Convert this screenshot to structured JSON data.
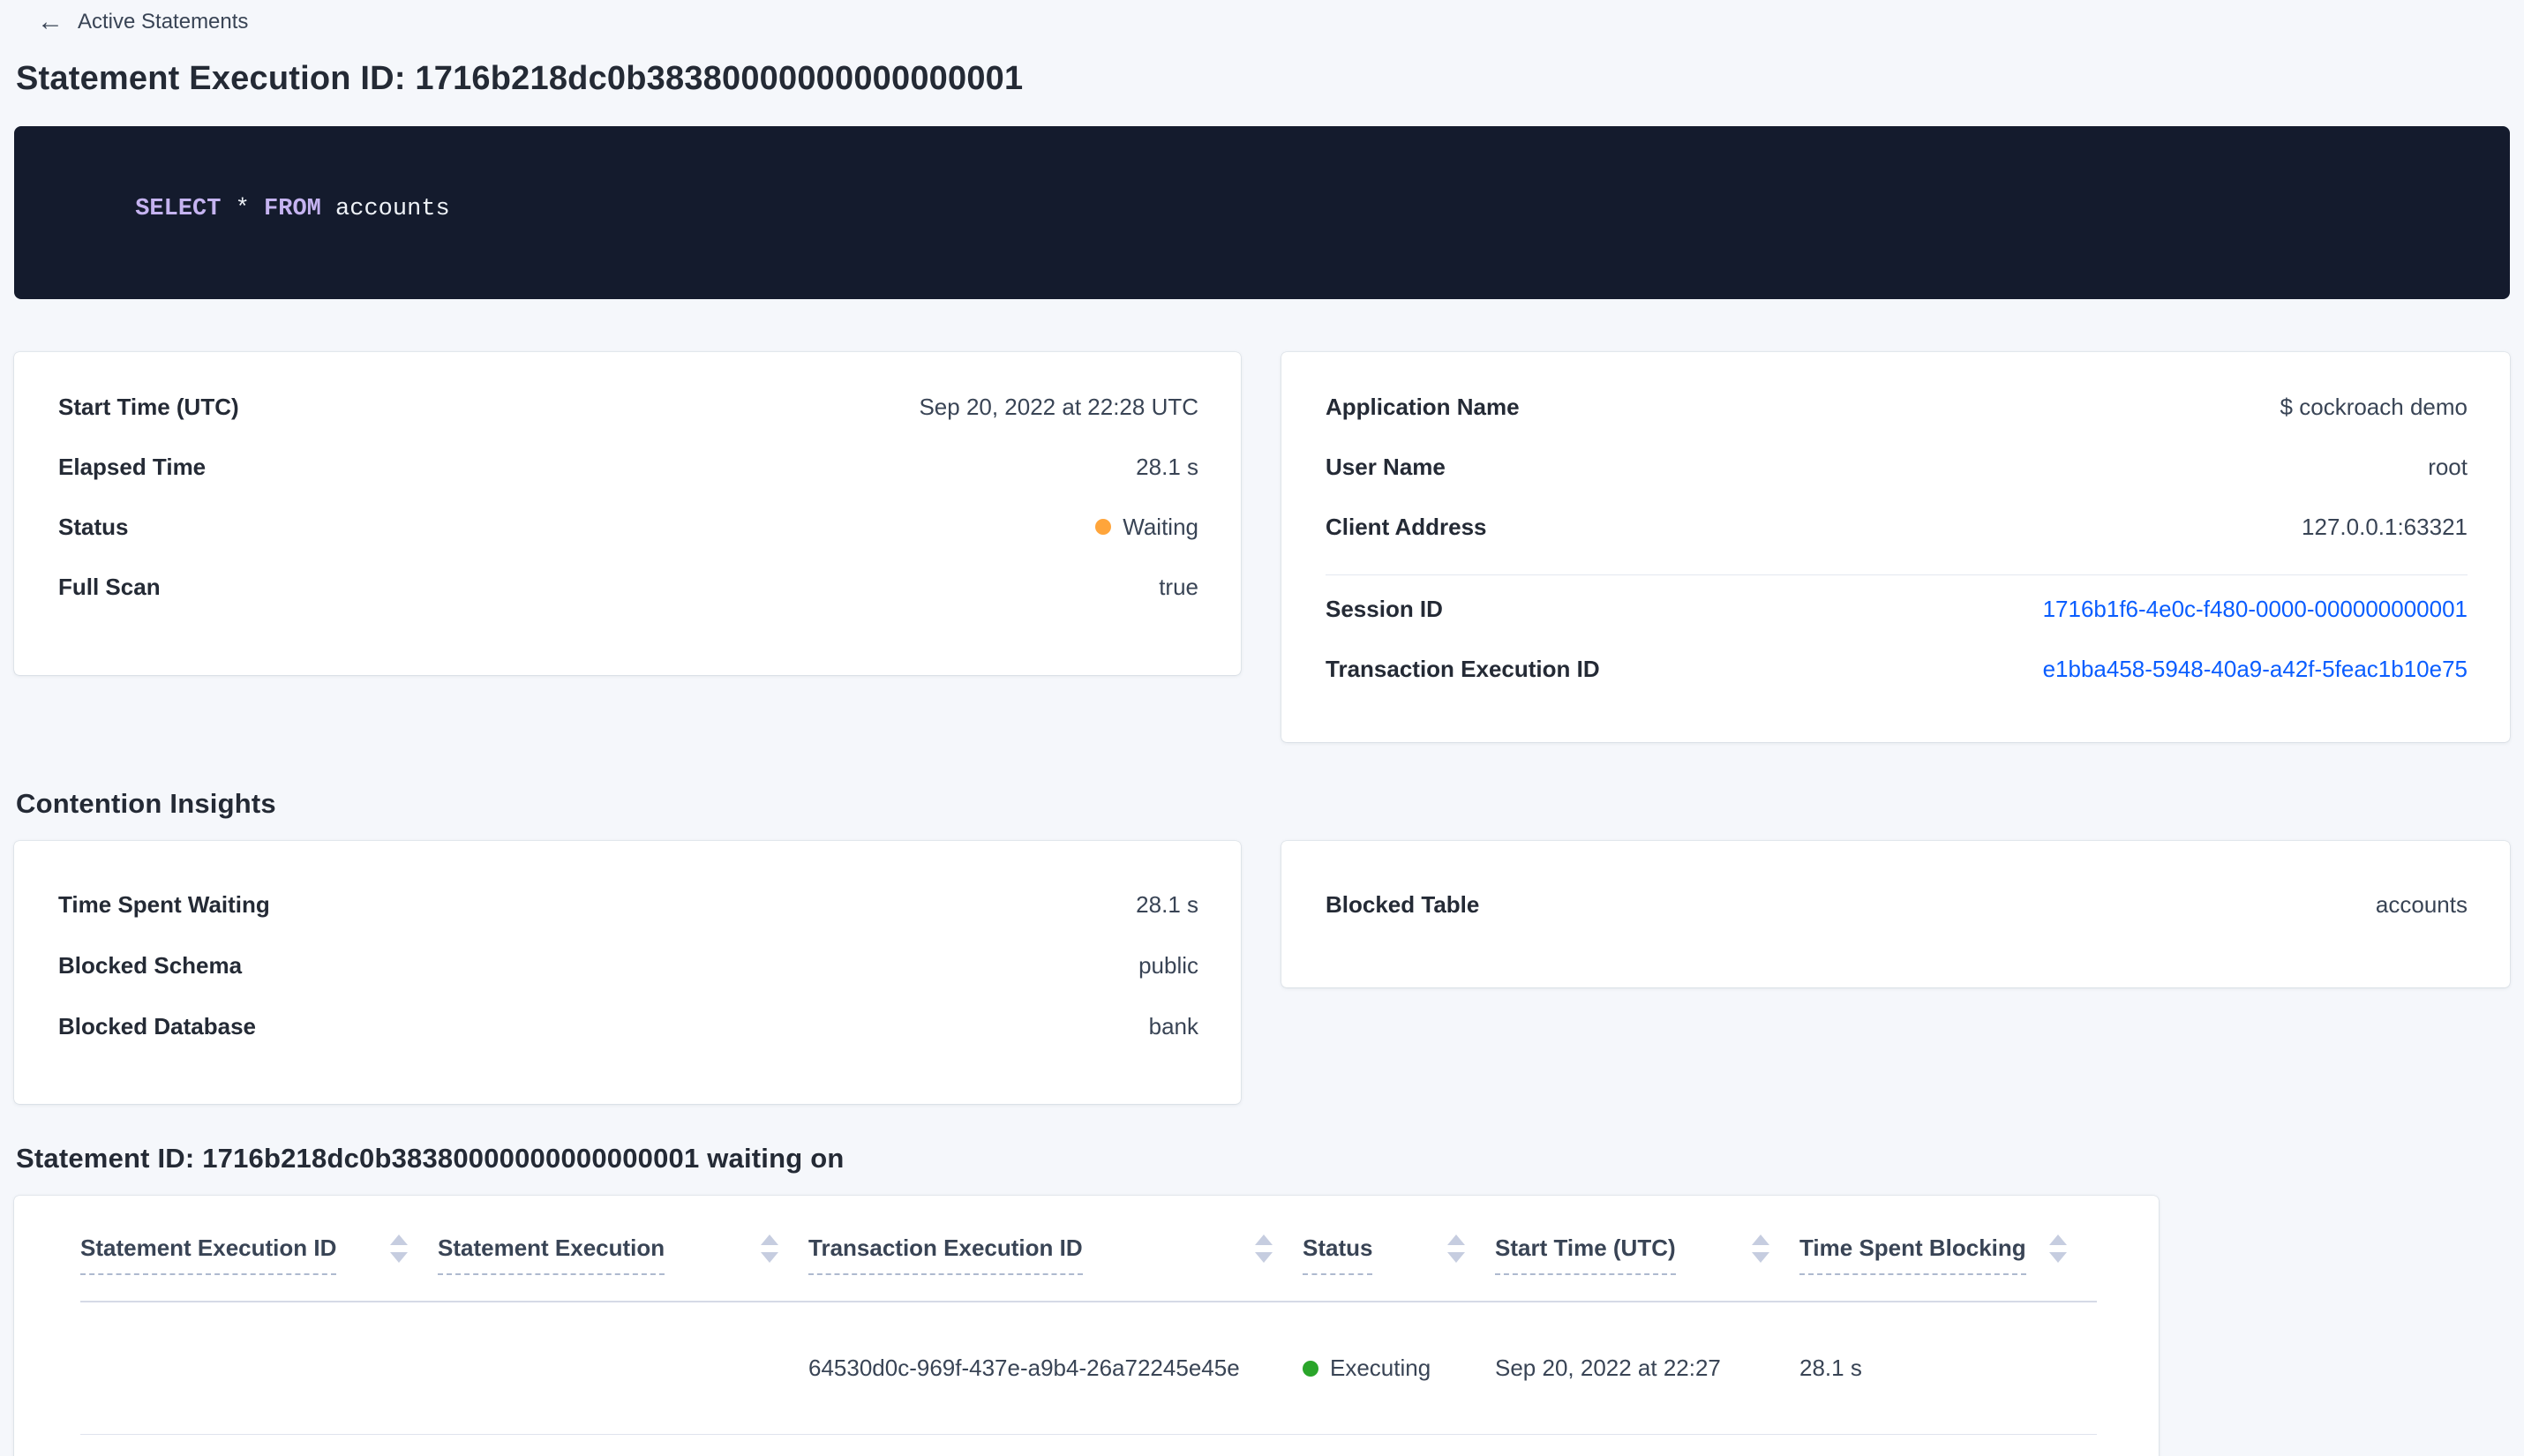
{
  "colors": {
    "page_background": "#f5f7fb",
    "card_background": "#ffffff",
    "heading_text": "#242a35",
    "body_text": "#394455",
    "link_blue": "#0a5dff",
    "sql_box_background": "#141b2d",
    "sql_keyword": "#c5b3f0",
    "sql_plain": "#eef2f7",
    "status_waiting": "#ffa53b",
    "status_executing": "#2aa52a",
    "sort_icon": "#c6cde0"
  },
  "nav": {
    "back_label": "Active Statements"
  },
  "header": {
    "title": "Statement Execution ID: 1716b218dc0b38380000000000000001"
  },
  "sql": {
    "tokens": [
      {
        "text": "SELECT",
        "type": "keyword"
      },
      {
        "text": " * ",
        "type": "plain"
      },
      {
        "text": "FROM",
        "type": "keyword"
      },
      {
        "text": " accounts",
        "type": "plain"
      }
    ]
  },
  "execution_card": {
    "rows": [
      {
        "label": "Start Time (UTC)",
        "value": "Sep 20, 2022 at 22:28 UTC"
      },
      {
        "label": "Elapsed Time",
        "value": "28.1 s"
      },
      {
        "label": "Status",
        "value": "Waiting",
        "status_color": "#ffa53b"
      },
      {
        "label": "Full Scan",
        "value": "true"
      }
    ]
  },
  "session_card": {
    "rows_top": [
      {
        "label": "Application Name",
        "value": "$ cockroach demo"
      },
      {
        "label": "User Name",
        "value": "root"
      },
      {
        "label": "Client Address",
        "value": "127.0.0.1:63321"
      }
    ],
    "rows_links": [
      {
        "label": "Session ID",
        "value": "1716b1f6-4e0c-f480-0000-000000000001"
      },
      {
        "label": "Transaction Execution ID",
        "value": "e1bba458-5948-40a9-a42f-5feac1b10e75"
      }
    ]
  },
  "contention": {
    "heading": "Contention Insights",
    "waiting_card_rows": [
      {
        "label": "Time Spent Waiting",
        "value": "28.1 s"
      },
      {
        "label": "Blocked Schema",
        "value": "public"
      },
      {
        "label": "Blocked Database",
        "value": "bank"
      }
    ],
    "blocked_card_rows": [
      {
        "label": "Blocked Table",
        "value": "accounts"
      }
    ]
  },
  "waiting_on": {
    "heading": "Statement ID: 1716b218dc0b38380000000000000001 waiting on",
    "table": {
      "columns": [
        "Statement Execution ID",
        "Statement Execution",
        "Transaction Execution ID",
        "Status",
        "Start Time (UTC)",
        "Time Spent Blocking"
      ],
      "rows": [
        {
          "statement_execution_id": "",
          "statement_execution": "",
          "transaction_execution_id": "64530d0c-969f-437e-a9b4-26a72245e45e",
          "status": "Executing",
          "status_color": "#2aa52a",
          "start_time": "Sep 20, 2022 at 22:27",
          "time_spent_blocking": "28.1 s"
        }
      ]
    }
  }
}
